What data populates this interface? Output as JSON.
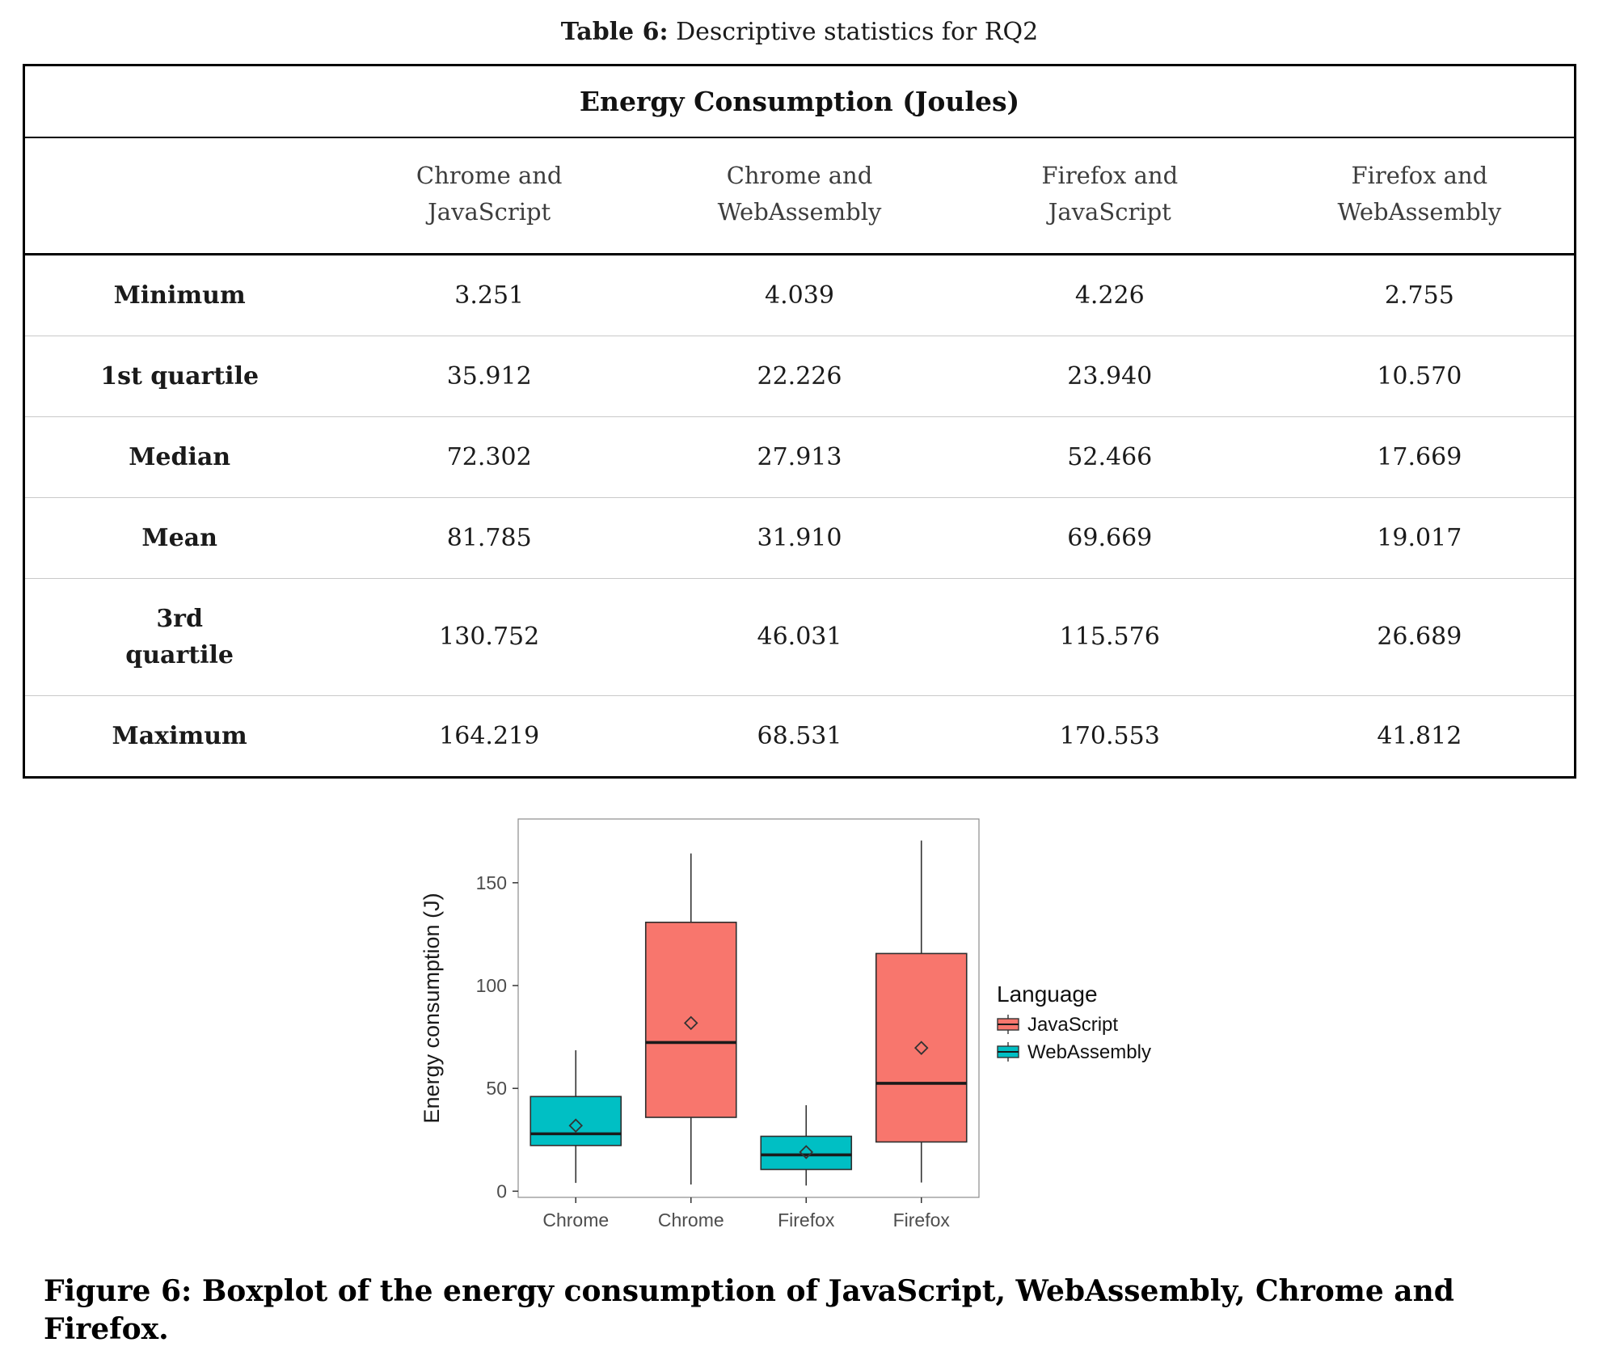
{
  "table_caption": {
    "label": "Table 6:",
    "text": " Descriptive statistics for RQ2"
  },
  "table": {
    "title": "Energy Consumption (Joules)",
    "columns": [
      {
        "line1": "Chrome and",
        "line2": "JavaScript"
      },
      {
        "line1": "Chrome and",
        "line2": "WebAssembly"
      },
      {
        "line1": "Firefox and",
        "line2": "JavaScript"
      },
      {
        "line1": "Firefox and",
        "line2": "WebAssembly"
      }
    ],
    "rows": [
      {
        "label": "Minimum",
        "values": [
          "3.251",
          "4.039",
          "4.226",
          "2.755"
        ]
      },
      {
        "label": "1st quartile",
        "values": [
          "35.912",
          "22.226",
          "23.940",
          "10.570"
        ]
      },
      {
        "label": "Median",
        "values": [
          "72.302",
          "27.913",
          "52.466",
          "17.669"
        ]
      },
      {
        "label": "Mean",
        "values": [
          "81.785",
          "31.910",
          "69.669",
          "19.017"
        ]
      },
      {
        "label": "3rd\nquartile",
        "values": [
          "130.752",
          "46.031",
          "115.576",
          "26.689"
        ]
      },
      {
        "label": "Maximum",
        "values": [
          "164.219",
          "68.531",
          "170.553",
          "41.812"
        ]
      }
    ]
  },
  "chart_data": {
    "type": "boxplot",
    "title": "",
    "xlabel": "",
    "ylabel": "Energy consumption (J)",
    "ylim": [
      0,
      175
    ],
    "yticks": [
      0,
      50,
      100,
      150
    ],
    "grid": false,
    "x_tick_labels": [
      "Chrome",
      "Chrome",
      "Firefox",
      "Firefox"
    ],
    "legend": {
      "title": "Language",
      "position": "right",
      "entries": [
        {
          "label": "JavaScript",
          "color": "#F8766D"
        },
        {
          "label": "WebAssembly",
          "color": "#00BFC4"
        }
      ]
    },
    "boxes": [
      {
        "browser": "Chrome",
        "language": "WebAssembly",
        "min": 4.039,
        "q1": 22.226,
        "median": 27.913,
        "mean": 31.91,
        "q3": 46.031,
        "max": 68.531,
        "color": "#00BFC4"
      },
      {
        "browser": "Chrome",
        "language": "JavaScript",
        "min": 3.251,
        "q1": 35.912,
        "median": 72.302,
        "mean": 81.785,
        "q3": 130.752,
        "max": 164.219,
        "color": "#F8766D"
      },
      {
        "browser": "Firefox",
        "language": "WebAssembly",
        "min": 2.755,
        "q1": 10.57,
        "median": 17.669,
        "mean": 19.017,
        "q3": 26.689,
        "max": 41.812,
        "color": "#00BFC4"
      },
      {
        "browser": "Firefox",
        "language": "JavaScript",
        "min": 4.226,
        "q1": 23.94,
        "median": 52.466,
        "mean": 69.669,
        "q3": 115.576,
        "max": 170.553,
        "color": "#F8766D"
      }
    ]
  },
  "figure_caption": "Figure 6: Boxplot of the energy consumption of JavaScript, WebAssembly, Chrome and Firefox."
}
